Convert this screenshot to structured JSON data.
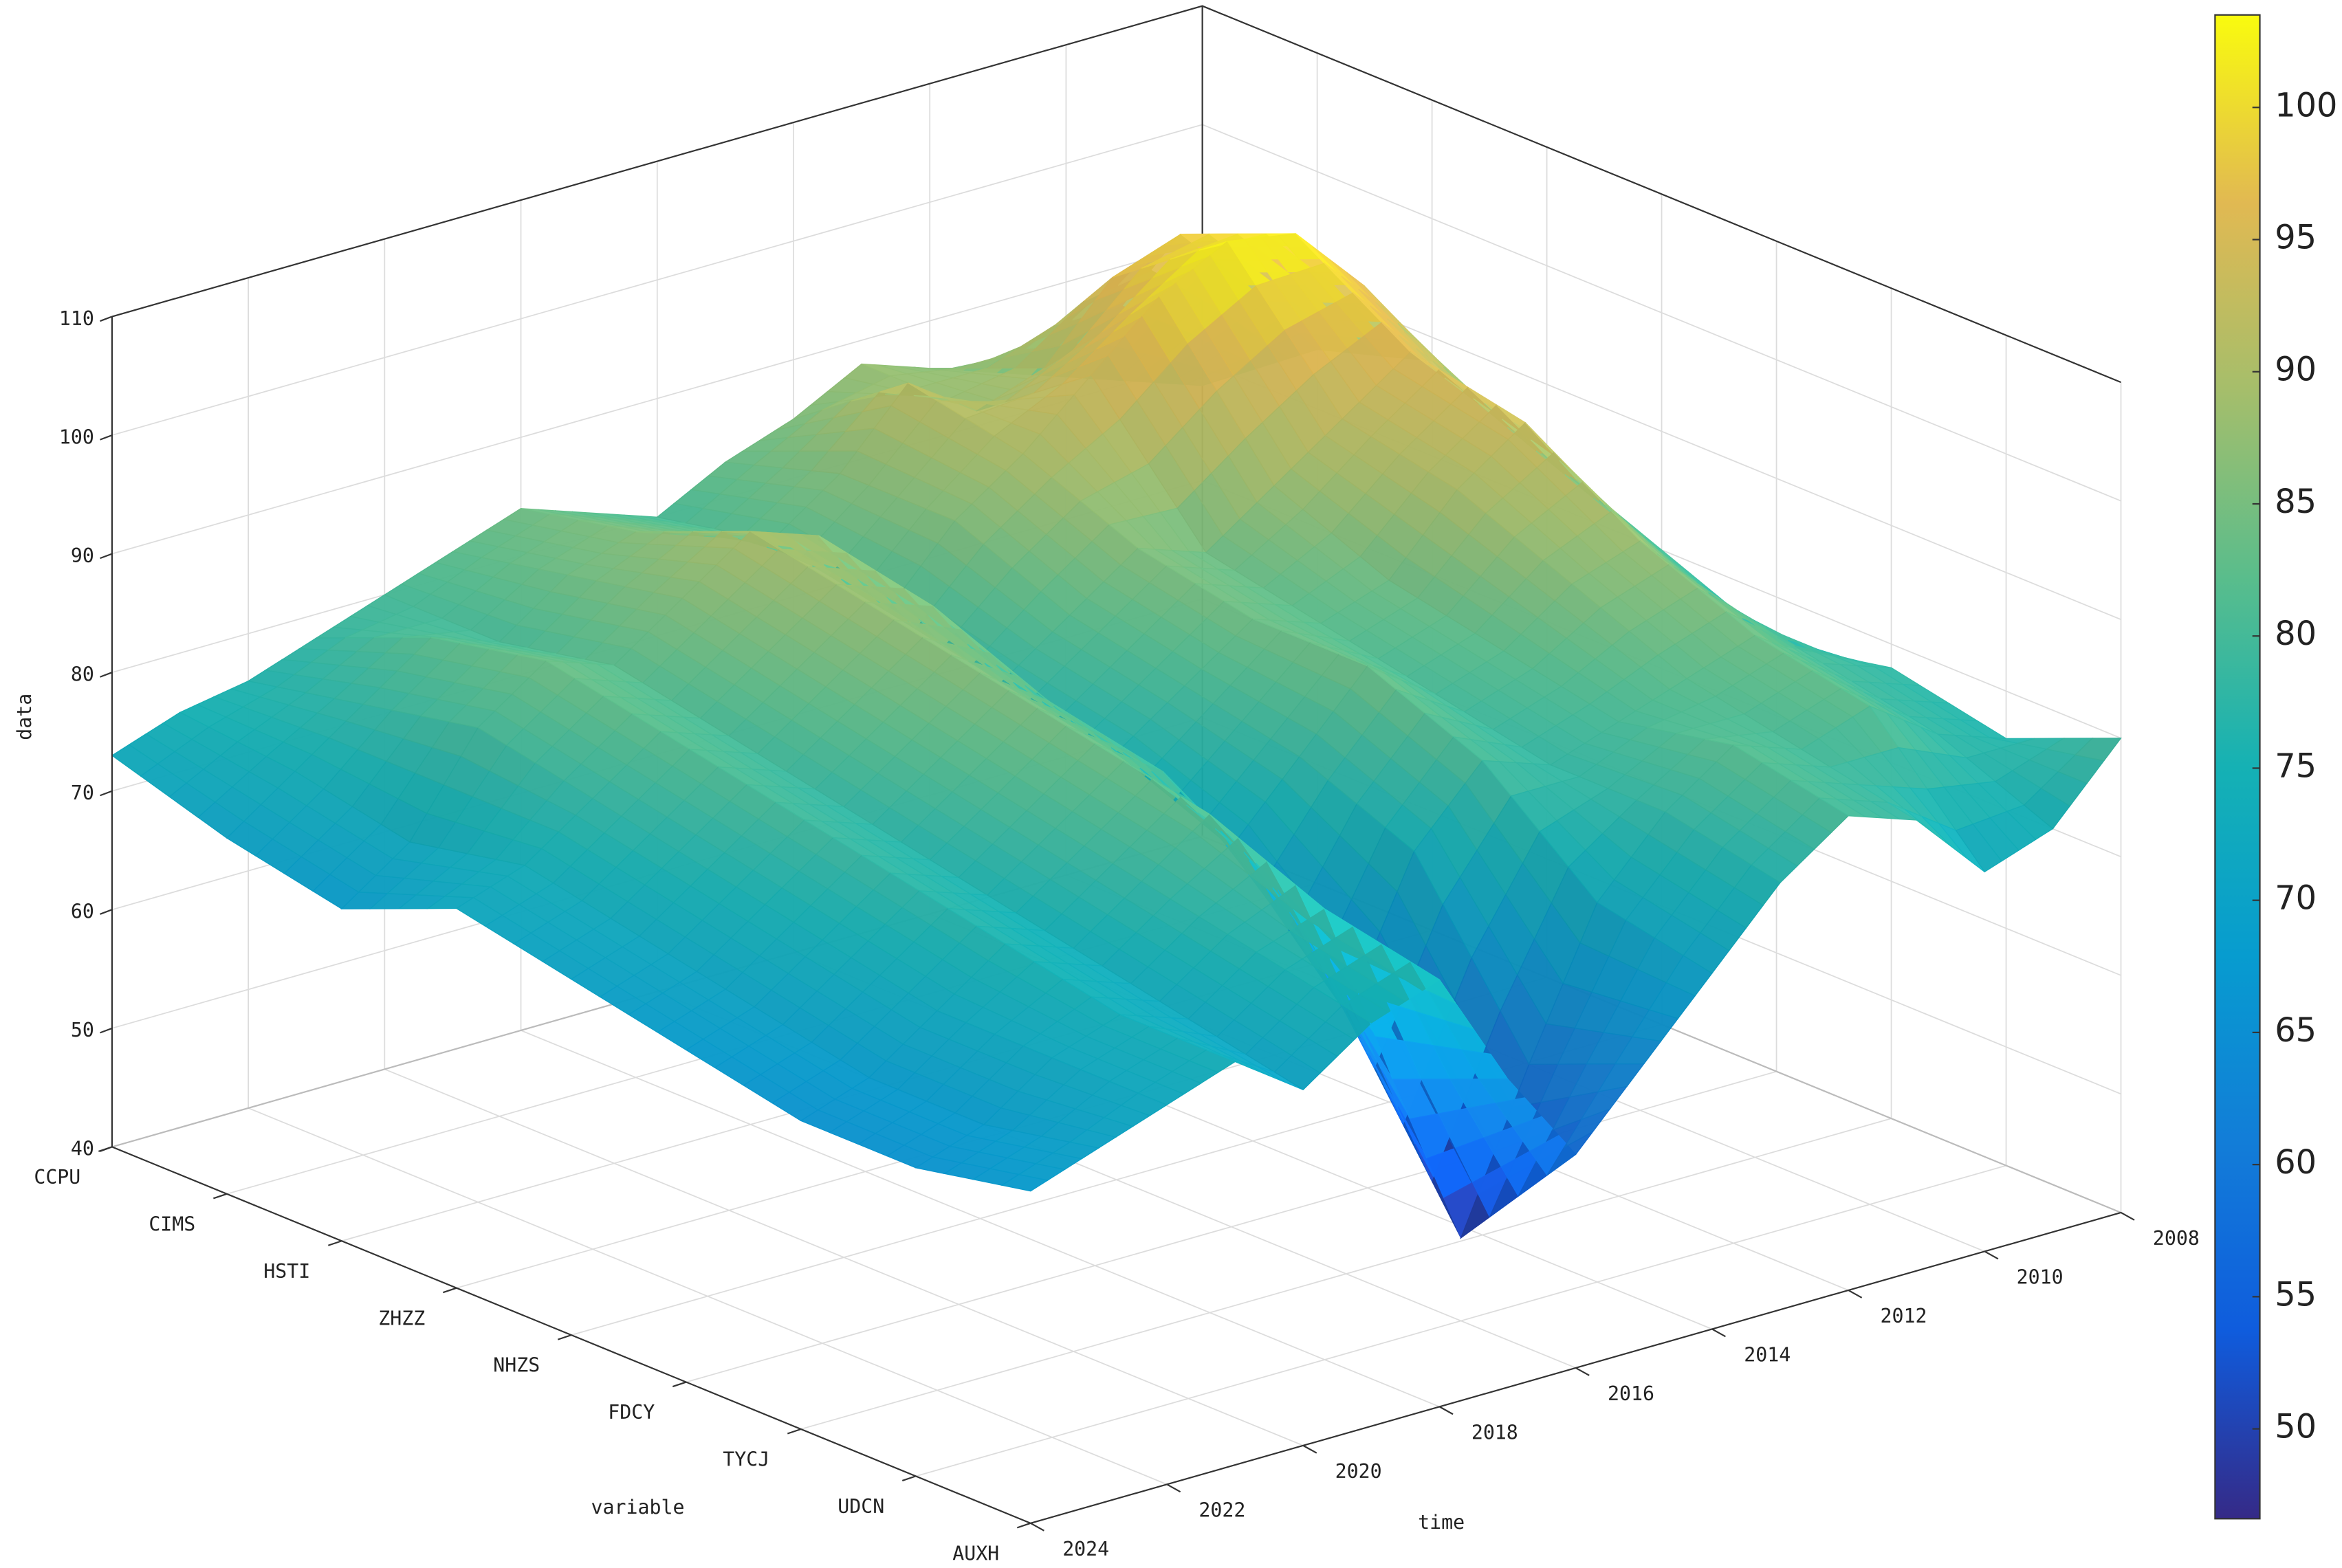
{
  "chart_data": {
    "type": "surface",
    "xlabel": "time",
    "ylabel": "variable",
    "zlabel": "data",
    "x": [
      2008,
      2009,
      2010,
      2011,
      2012,
      2013,
      2014,
      2015,
      2016,
      2017,
      2018,
      2019,
      2020,
      2021,
      2022,
      2023,
      2024
    ],
    "categories": [
      "CCPU",
      "CIMS",
      "HSTI",
      "ZHZZ",
      "NHZS",
      "FDCY",
      "TYCJ",
      "UDCN",
      "AUXH"
    ],
    "z": [
      [
        78,
        80,
        82,
        84,
        86,
        88,
        85,
        83,
        80,
        82,
        84,
        82,
        80,
        78,
        76,
        75,
        73
      ],
      [
        85,
        92,
        98,
        96,
        90,
        88,
        92,
        86,
        82,
        84,
        86,
        84,
        80,
        82,
        78,
        74,
        70
      ],
      [
        88,
        96,
        102,
        103,
        100,
        95,
        90,
        86,
        80,
        88,
        90,
        86,
        82,
        84,
        80,
        72,
        68
      ],
      [
        84,
        90,
        96,
        92,
        88,
        84,
        86,
        82,
        78,
        86,
        88,
        84,
        80,
        82,
        78,
        74,
        72
      ],
      [
        80,
        86,
        94,
        90,
        84,
        82,
        84,
        80,
        76,
        82,
        86,
        82,
        78,
        80,
        76,
        72,
        70
      ],
      [
        76,
        82,
        88,
        86,
        82,
        80,
        84,
        78,
        72,
        80,
        84,
        80,
        76,
        78,
        74,
        70,
        68
      ],
      [
        78,
        80,
        84,
        82,
        80,
        78,
        80,
        74,
        62,
        74,
        82,
        78,
        74,
        76,
        72,
        68,
        66
      ],
      [
        76,
        78,
        82,
        80,
        82,
        78,
        72,
        60,
        47,
        62,
        78,
        76,
        72,
        74,
        72,
        68,
        66
      ],
      [
        80,
        74,
        72,
        78,
        80,
        76,
        70,
        64,
        58,
        66,
        76,
        74,
        70,
        74,
        72,
        70,
        68
      ]
    ],
    "xlim": [
      2008,
      2024
    ],
    "xticks": [
      2008,
      2010,
      2012,
      2014,
      2016,
      2018,
      2020,
      2022,
      2024
    ],
    "zlim": [
      40,
      110
    ],
    "zticks": [
      40,
      50,
      60,
      70,
      80,
      90,
      100,
      110
    ],
    "clim": [
      46.6,
      103.5
    ],
    "cticks": [
      50,
      55,
      60,
      65,
      70,
      75,
      80,
      85,
      90,
      95,
      100
    ],
    "grid": true
  }
}
